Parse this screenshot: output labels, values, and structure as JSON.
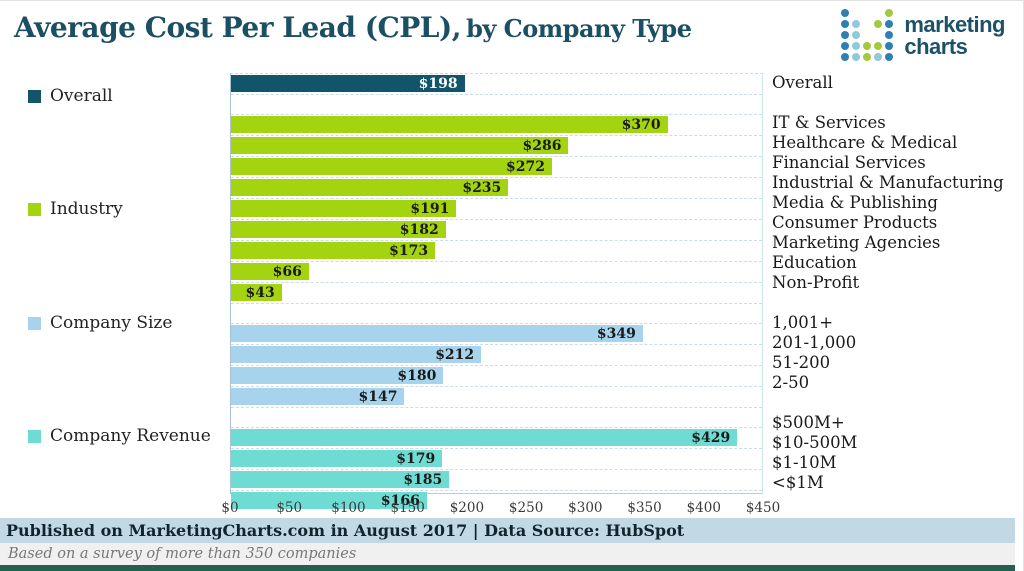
{
  "header": {
    "title_main": "Average Cost Per Lead (CPL),",
    "title_sub": "by Company Type"
  },
  "logo": {
    "word1": "marketing",
    "word2": "charts",
    "dot_colors": {
      "b": "#2d7fb5",
      "l": "#8ec9dd",
      "g": "#a3c93c"
    },
    "dot_matrix": [
      "b...g",
      "bl.gb",
      "bl..b",
      "blggb",
      "blglb"
    ]
  },
  "chart_data": {
    "type": "bar",
    "orientation": "horizontal",
    "title": "Average Cost Per Lead (CPL), by Company Type",
    "xlabel": "",
    "ylabel": "",
    "xlim": [
      0,
      450
    ],
    "x_ticks": [
      "$0",
      "$50",
      "$100",
      "$150",
      "$200",
      "$250",
      "$300",
      "$350",
      "$400",
      "$450"
    ],
    "x_tick_values": [
      0,
      50,
      100,
      150,
      200,
      250,
      300,
      350,
      400,
      450
    ],
    "value_prefix": "$",
    "grid": "row-separators-dashed",
    "legend_position": "left",
    "groups": [
      {
        "legend": "Overall",
        "color": "#125469",
        "value_label_color": "#ffffff",
        "items": [
          {
            "label": "Overall",
            "value": 198
          }
        ]
      },
      {
        "legend": "Industry",
        "color": "#a3d40f",
        "value_label_color": "#1a1a1a",
        "items": [
          {
            "label": "IT & Services",
            "value": 370
          },
          {
            "label": "Healthcare & Medical",
            "value": 286
          },
          {
            "label": "Financial Services",
            "value": 272
          },
          {
            "label": "Industrial & Manufacturing",
            "value": 235
          },
          {
            "label": "Media & Publishing",
            "value": 191
          },
          {
            "label": "Consumer Products",
            "value": 182
          },
          {
            "label": "Marketing Agencies",
            "value": 173
          },
          {
            "label": "Education",
            "value": 66
          },
          {
            "label": "Non-Profit",
            "value": 43
          }
        ]
      },
      {
        "legend": "Company Size",
        "color": "#a7d3ec",
        "value_label_color": "#1a1a1a",
        "items": [
          {
            "label": "1,001+",
            "value": 349
          },
          {
            "label": "201-1,000",
            "value": 212
          },
          {
            "label": "51-200",
            "value": 180
          },
          {
            "label": "2-50",
            "value": 147
          }
        ]
      },
      {
        "legend": "Company Revenue",
        "color": "#6edcd2",
        "value_label_color": "#1a1a1a",
        "items": [
          {
            "label": "$500M+",
            "value": 429
          },
          {
            "label": "$10-500M",
            "value": 179
          },
          {
            "label": "$1-10M",
            "value": 185
          },
          {
            "label": "<$1M",
            "value": 166
          }
        ]
      }
    ]
  },
  "footer": {
    "published": "Published on MarketingCharts.com in August 2017 | Data Source: HubSpot",
    "note": "Based on a survey of more than 350 companies"
  },
  "colors": {
    "title_text": "#1b4f63",
    "overall_bar": "#125469",
    "industry_bar": "#a3d40f",
    "company_size_bar": "#a7d3ec",
    "company_revenue_bar": "#6edcd2",
    "footer_band": "#c2d9e5",
    "bottom_bar": "#275e52",
    "gridline": "#c8deec"
  }
}
